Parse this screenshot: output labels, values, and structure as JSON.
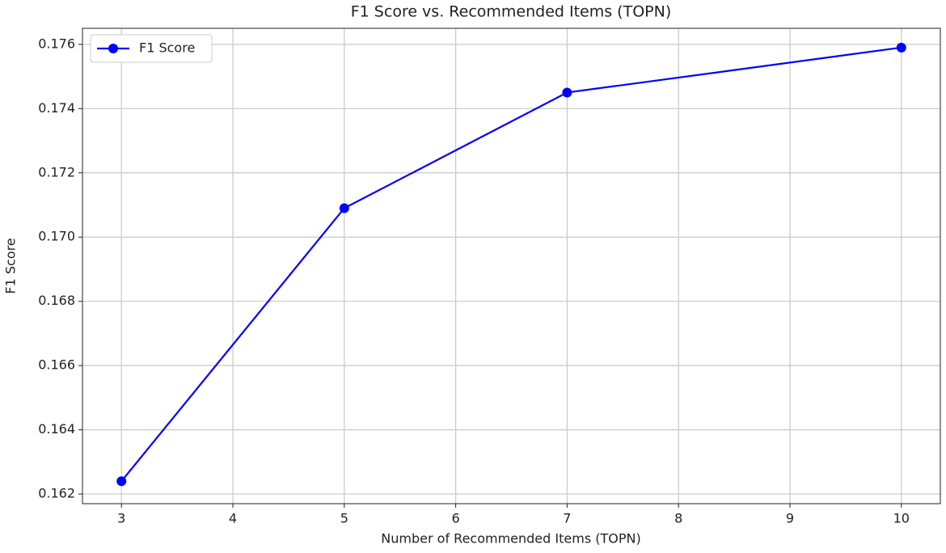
{
  "chart_data": {
    "type": "line",
    "title": "F1 Score vs. Recommended Items (TOPN)",
    "x_label": "Number of Recommended Items (TOPN)",
    "y_label": "F1 Score",
    "x": [
      3,
      5,
      7,
      10
    ],
    "series": [
      {
        "name": "F1 Score",
        "color": "#0000ff",
        "values": [
          0.1624,
          0.1709,
          0.1745,
          0.1759
        ]
      }
    ],
    "xlim": [
      2.65,
      10.35
    ],
    "xticks": [
      3,
      4,
      5,
      6,
      7,
      8,
      9,
      10
    ],
    "ylim": [
      0.1617,
      0.1765
    ],
    "yticks": [
      0.162,
      0.164,
      0.166,
      0.168,
      {
        "value": 0.17,
        "label": "0.170"
      },
      0.172,
      0.174,
      0.176
    ],
    "grid": true,
    "legend": "upper-left"
  }
}
